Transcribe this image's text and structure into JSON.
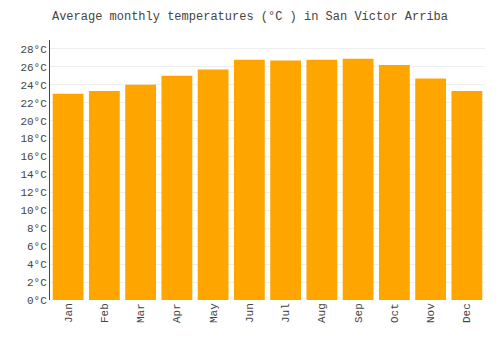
{
  "chart_data": {
    "type": "bar",
    "title": "Average monthly temperatures (°C ) in San Víctor Arriba",
    "categories": [
      "Jan",
      "Feb",
      "Mar",
      "Apr",
      "May",
      "Jun",
      "Jul",
      "Aug",
      "Sep",
      "Oct",
      "Nov",
      "Dec"
    ],
    "values": [
      23.0,
      23.3,
      24.0,
      25.0,
      25.7,
      26.8,
      26.7,
      26.8,
      26.9,
      26.2,
      24.7,
      23.3
    ],
    "color": "#FFA500",
    "ylim": [
      0,
      29
    ],
    "yticks": [
      {
        "value": 0,
        "label": "0°C"
      },
      {
        "value": 2,
        "label": "2°C"
      },
      {
        "value": 4,
        "label": "4°C"
      },
      {
        "value": 6,
        "label": "6°C"
      },
      {
        "value": 8,
        "label": "8°C"
      },
      {
        "value": 10,
        "label": "10°C"
      },
      {
        "value": 12,
        "label": "12°C"
      },
      {
        "value": 14,
        "label": "14°C"
      },
      {
        "value": 16,
        "label": "16°C"
      },
      {
        "value": 18,
        "label": "18°C"
      },
      {
        "value": 20,
        "label": "20°C"
      },
      {
        "value": 22,
        "label": "22°C"
      },
      {
        "value": 24,
        "label": "24°C"
      },
      {
        "value": 26,
        "label": "26°C"
      },
      {
        "value": 28,
        "label": "28°C"
      }
    ],
    "grid": true
  }
}
